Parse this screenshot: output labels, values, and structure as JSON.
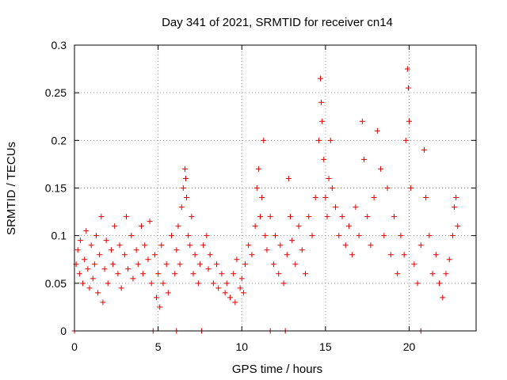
{
  "chart_data": {
    "type": "scatter",
    "title": "Day 341 of 2021, SRMTID for receiver cn14",
    "xlabel": "GPS time / hours",
    "ylabel": "SRMTID / TECUs",
    "xlim": [
      0,
      24
    ],
    "ylim": [
      0,
      0.3
    ],
    "xticks": [
      0,
      5,
      10,
      15,
      20
    ],
    "yticks": [
      0,
      0.05,
      0.1,
      0.15,
      0.2,
      0.25,
      0.3
    ],
    "ytick_labels": [
      "0",
      "0.05",
      "0.1",
      "0.15",
      "0.2",
      "0.25",
      "0.3"
    ],
    "grid": true,
    "marker": "plus",
    "color": "#e00000",
    "series": [
      {
        "name": "SRMTID",
        "points": [
          [
            0.1,
            0.07
          ],
          [
            0.2,
            0.085
          ],
          [
            0.3,
            0.06
          ],
          [
            0.35,
            0.095
          ],
          [
            0.5,
            0.05
          ],
          [
            0.6,
            0.075
          ],
          [
            0.7,
            0.105
          ],
          [
            0.8,
            0.065
          ],
          [
            0.9,
            0.045
          ],
          [
            1.0,
            0.09
          ],
          [
            1.1,
            0.055
          ],
          [
            1.2,
            0.07
          ],
          [
            1.3,
            0.1
          ],
          [
            1.4,
            0.04
          ],
          [
            1.5,
            0.08
          ],
          [
            1.6,
            0.12
          ],
          [
            1.7,
            0.03
          ],
          [
            1.8,
            0.065
          ],
          [
            1.9,
            0.095
          ],
          [
            2.0,
            0.05
          ],
          [
            2.2,
            0.085
          ],
          [
            2.3,
            0.07
          ],
          [
            2.4,
            0.11
          ],
          [
            2.6,
            0.06
          ],
          [
            2.7,
            0.09
          ],
          [
            2.8,
            0.045
          ],
          [
            3.0,
            0.08
          ],
          [
            3.1,
            0.12
          ],
          [
            3.2,
            0.065
          ],
          [
            3.4,
            0.1
          ],
          [
            3.5,
            0.055
          ],
          [
            3.7,
            0.085
          ],
          [
            3.8,
            0.07
          ],
          [
            4.0,
            0.11
          ],
          [
            4.1,
            0.06
          ],
          [
            4.2,
            0.09
          ],
          [
            4.4,
            0.075
          ],
          [
            4.5,
            0.115
          ],
          [
            4.6,
            0.05
          ],
          [
            4.8,
            0.08
          ],
          [
            4.9,
            0.035
          ],
          [
            5.0,
            0.06
          ],
          [
            5.1,
            0.025
          ],
          [
            5.2,
            0.09
          ],
          [
            5.3,
            0.05
          ],
          [
            5.5,
            0.07
          ],
          [
            5.6,
            0.04
          ],
          [
            5.8,
            0.1
          ],
          [
            6.0,
            0.06
          ],
          [
            6.1,
            0.085
          ],
          [
            6.2,
            0.11
          ],
          [
            6.3,
            0.07
          ],
          [
            6.4,
            0.13
          ],
          [
            6.5,
            0.15
          ],
          [
            6.6,
            0.17
          ],
          [
            6.65,
            0.16
          ],
          [
            6.7,
            0.14
          ],
          [
            6.8,
            0.1
          ],
          [
            6.9,
            0.09
          ],
          [
            7.0,
            0.12
          ],
          [
            7.1,
            0.06
          ],
          [
            7.2,
            0.08
          ],
          [
            7.4,
            0.05
          ],
          [
            7.5,
            0.07
          ],
          [
            7.7,
            0.09
          ],
          [
            7.9,
            0.1
          ],
          [
            8.0,
            0.065
          ],
          [
            8.1,
            0.08
          ],
          [
            8.3,
            0.05
          ],
          [
            8.5,
            0.07
          ],
          [
            8.6,
            0.045
          ],
          [
            8.8,
            0.06
          ],
          [
            9.0,
            0.04
          ],
          [
            9.1,
            0.05
          ],
          [
            9.3,
            0.035
          ],
          [
            9.5,
            0.06
          ],
          [
            9.6,
            0.03
          ],
          [
            9.7,
            0.075
          ],
          [
            9.9,
            0.045
          ],
          [
            10.0,
            0.055
          ],
          [
            10.1,
            0.04
          ],
          [
            10.2,
            0.07
          ],
          [
            10.4,
            0.09
          ],
          [
            10.6,
            0.08
          ],
          [
            10.8,
            0.11
          ],
          [
            10.9,
            0.15
          ],
          [
            11.0,
            0.17
          ],
          [
            11.1,
            0.12
          ],
          [
            11.2,
            0.14
          ],
          [
            11.3,
            0.2
          ],
          [
            11.4,
            0.1
          ],
          [
            11.5,
            0.085
          ],
          [
            11.7,
            0.12
          ],
          [
            11.9,
            0.07
          ],
          [
            12.0,
            0.1
          ],
          [
            12.2,
            0.06
          ],
          [
            12.3,
            0.09
          ],
          [
            12.5,
            0.05
          ],
          [
            12.7,
            0.08
          ],
          [
            12.8,
            0.16
          ],
          [
            12.9,
            0.12
          ],
          [
            13.0,
            0.095
          ],
          [
            13.2,
            0.07
          ],
          [
            13.4,
            0.11
          ],
          [
            13.6,
            0.085
          ],
          [
            13.8,
            0.06
          ],
          [
            14.0,
            0.12
          ],
          [
            14.2,
            0.1
          ],
          [
            14.4,
            0.14
          ],
          [
            14.6,
            0.2
          ],
          [
            14.7,
            0.265
          ],
          [
            14.75,
            0.24
          ],
          [
            14.8,
            0.22
          ],
          [
            14.9,
            0.18
          ],
          [
            15.0,
            0.14
          ],
          [
            15.1,
            0.12
          ],
          [
            15.2,
            0.16
          ],
          [
            15.3,
            0.2
          ],
          [
            15.4,
            0.15
          ],
          [
            15.6,
            0.13
          ],
          [
            15.8,
            0.1
          ],
          [
            16.0,
            0.12
          ],
          [
            16.2,
            0.09
          ],
          [
            16.4,
            0.11
          ],
          [
            16.6,
            0.08
          ],
          [
            16.8,
            0.13
          ],
          [
            17.0,
            0.1
          ],
          [
            17.2,
            0.22
          ],
          [
            17.3,
            0.18
          ],
          [
            17.5,
            0.12
          ],
          [
            17.7,
            0.09
          ],
          [
            17.9,
            0.14
          ],
          [
            18.1,
            0.21
          ],
          [
            18.3,
            0.17
          ],
          [
            18.5,
            0.1
          ],
          [
            18.7,
            0.15
          ],
          [
            18.9,
            0.08
          ],
          [
            19.1,
            0.12
          ],
          [
            19.3,
            0.06
          ],
          [
            19.5,
            0.1
          ],
          [
            19.7,
            0.08
          ],
          [
            19.8,
            0.2
          ],
          [
            19.9,
            0.275
          ],
          [
            19.95,
            0.255
          ],
          [
            20.0,
            0.22
          ],
          [
            20.1,
            0.15
          ],
          [
            20.3,
            0.07
          ],
          [
            20.5,
            0.05
          ],
          [
            20.7,
            0.09
          ],
          [
            20.9,
            0.19
          ],
          [
            21.0,
            0.14
          ],
          [
            21.2,
            0.1
          ],
          [
            21.4,
            0.06
          ],
          [
            21.6,
            0.08
          ],
          [
            21.8,
            0.05
          ],
          [
            22.0,
            0.035
          ],
          [
            22.2,
            0.06
          ],
          [
            22.4,
            0.075
          ],
          [
            22.6,
            0.1
          ],
          [
            22.7,
            0.13
          ],
          [
            22.8,
            0.14
          ],
          [
            22.9,
            0.11
          ],
          [
            0.0,
            0.0
          ],
          [
            4.7,
            0.0
          ],
          [
            6.1,
            0.0
          ],
          [
            7.6,
            0.0
          ],
          [
            11.7,
            0.0
          ],
          [
            12.6,
            0.0
          ],
          [
            20.7,
            0.0
          ]
        ]
      }
    ]
  }
}
